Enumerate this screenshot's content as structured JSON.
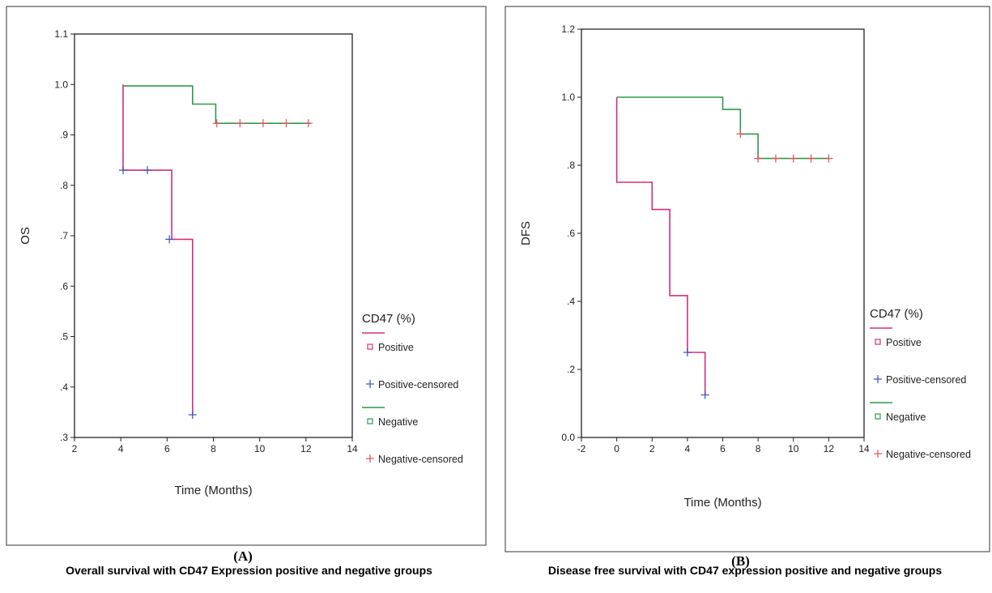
{
  "chart_data": [
    {
      "type": "line",
      "panel_label": "(A)",
      "caption": "Overall survival with CD47 Expression positive and negative groups",
      "xlabel": "Time (Months)",
      "ylabel": "OS",
      "xlim": [
        2,
        14
      ],
      "ylim": [
        0.3,
        1.1
      ],
      "xticks": [
        2,
        4,
        6,
        8,
        10,
        12,
        14
      ],
      "xtick_labels": [
        "2",
        "4",
        "6",
        "8",
        "10",
        "12",
        "14"
      ],
      "yticks": [
        0.3,
        0.4,
        0.5,
        0.6,
        0.7,
        0.8,
        0.9,
        1.0,
        1.1
      ],
      "ytick_labels": [
        ".3",
        ".4",
        ".5",
        ".6",
        ".7",
        ".8",
        ".9",
        "1.0",
        "1.1"
      ],
      "legend": {
        "title": "CD47 (%)",
        "position": "right",
        "entries": [
          {
            "label": "Positive",
            "marker": "line+square",
            "color": "#d0307a"
          },
          {
            "label": "Positive-censored",
            "marker": "plus",
            "color": "#3a4fc0"
          },
          {
            "label": "Negative",
            "marker": "line+square",
            "color": "#2e9a4c"
          },
          {
            "label": "Negative-censored",
            "marker": "plus",
            "color": "#e0505a"
          }
        ]
      },
      "series": [
        {
          "name": "Positive",
          "color": "#d0307a",
          "steps": [
            [
              4.1,
              1.0
            ],
            [
              4.1,
              0.83
            ],
            [
              6.2,
              0.83
            ],
            [
              6.2,
              0.693
            ],
            [
              7.1,
              0.693
            ],
            [
              7.1,
              0.345
            ]
          ],
          "censored": [
            [
              4.1,
              0.83
            ],
            [
              5.15,
              0.83
            ],
            [
              6.1,
              0.693
            ],
            [
              7.1,
              0.345
            ]
          ],
          "censored_color": "#3a4fc0"
        },
        {
          "name": "Negative",
          "color": "#2e9a4c",
          "steps": [
            [
              4.1,
              0.997
            ],
            [
              7.1,
              0.997
            ],
            [
              7.1,
              0.961
            ],
            [
              8.1,
              0.961
            ],
            [
              8.1,
              0.923
            ],
            [
              12.2,
              0.923
            ]
          ],
          "censored": [
            [
              8.15,
              0.923
            ],
            [
              9.15,
              0.923
            ],
            [
              10.15,
              0.923
            ],
            [
              11.15,
              0.923
            ],
            [
              12.1,
              0.923
            ]
          ],
          "censored_color": "#e0505a"
        }
      ]
    },
    {
      "type": "line",
      "panel_label": "(B)",
      "caption": "Disease free survival with CD47 expression positive and negative groups",
      "xlabel": "Time (Months)",
      "ylabel": "DFS",
      "xlim": [
        -2,
        14
      ],
      "ylim": [
        0.0,
        1.2
      ],
      "xticks": [
        -2,
        0,
        2,
        4,
        6,
        8,
        10,
        12,
        14
      ],
      "xtick_labels": [
        "-2",
        "0",
        "2",
        "4",
        "6",
        "8",
        "10",
        "12",
        "14"
      ],
      "yticks": [
        0.0,
        0.2,
        0.4,
        0.6,
        0.8,
        1.0,
        1.2
      ],
      "ytick_labels": [
        "0.0",
        ".2",
        ".4",
        ".6",
        ".8",
        "1.0",
        "1.2"
      ],
      "legend": {
        "title": "CD47 (%)",
        "position": "right",
        "entries": [
          {
            "label": "Positive",
            "marker": "line+square",
            "color": "#d0307a"
          },
          {
            "label": "Positive-censored",
            "marker": "plus",
            "color": "#3a4fc0"
          },
          {
            "label": "Negative",
            "marker": "line+square",
            "color": "#2e9a4c"
          },
          {
            "label": "Negative-censored",
            "marker": "plus",
            "color": "#e0505a"
          }
        ]
      },
      "series": [
        {
          "name": "Positive",
          "color": "#d0307a",
          "steps": [
            [
              0,
              1.0
            ],
            [
              0,
              0.75
            ],
            [
              2,
              0.75
            ],
            [
              2,
              0.67
            ],
            [
              3,
              0.67
            ],
            [
              3,
              0.417
            ],
            [
              4,
              0.417
            ],
            [
              4,
              0.25
            ],
            [
              5,
              0.25
            ],
            [
              5,
              0.125
            ]
          ],
          "censored": [
            [
              4,
              0.25
            ],
            [
              5,
              0.125
            ]
          ],
          "censored_color": "#3a4fc0"
        },
        {
          "name": "Negative",
          "color": "#2e9a4c",
          "steps": [
            [
              0,
              1.0
            ],
            [
              6,
              1.0
            ],
            [
              6,
              0.964
            ],
            [
              7,
              0.964
            ],
            [
              7,
              0.892
            ],
            [
              8,
              0.892
            ],
            [
              8,
              0.82
            ],
            [
              12,
              0.82
            ]
          ],
          "censored": [
            [
              7,
              0.892
            ],
            [
              8,
              0.82
            ],
            [
              9,
              0.82
            ],
            [
              10,
              0.82
            ],
            [
              11,
              0.82
            ],
            [
              12,
              0.82
            ]
          ],
          "censored_color": "#e0505a"
        }
      ]
    }
  ]
}
